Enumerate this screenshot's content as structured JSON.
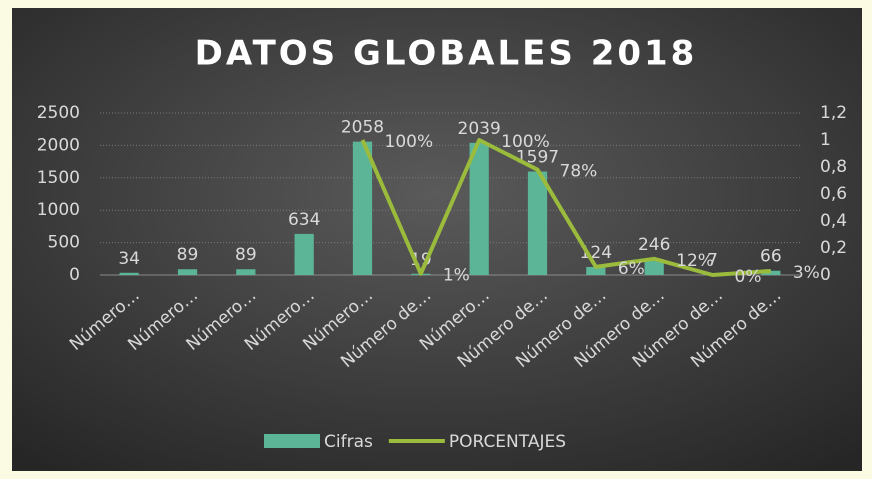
{
  "chart_data": {
    "type": "bar-line",
    "title": "DATOS GLOBALES 2018",
    "categories": [
      "Número…",
      "Número…",
      "Número…",
      "Número…",
      "Número…",
      "Número de…",
      "Número…",
      "Número de…",
      "Número de…",
      "Número de…",
      "Número de…",
      "Número de…"
    ],
    "series": [
      {
        "name": "Cifras",
        "type": "bar",
        "color": "#5cb596",
        "values": [
          34,
          89,
          89,
          634,
          2058,
          19,
          2039,
          1597,
          124,
          246,
          7,
          66
        ]
      },
      {
        "name": "PORCENTAJES",
        "type": "line",
        "axis": "y2",
        "color": "#9bbb3c",
        "values": [
          null,
          null,
          null,
          null,
          1,
          0.01,
          1,
          0.78,
          0.06,
          0.12,
          0,
          0.03
        ],
        "value_labels": [
          null,
          null,
          null,
          null,
          "100%",
          "1%",
          "100%",
          "78%",
          "6%",
          "12%",
          "0%",
          "3%"
        ]
      }
    ],
    "ylim": [
      0,
      2500
    ],
    "yticks": [
      0,
      500,
      1000,
      1500,
      2000,
      2500
    ],
    "y2lim": [
      0,
      1.2
    ],
    "y2ticks": [
      0,
      {
        "value": 0.2,
        "label": "0,2"
      },
      {
        "value": 0.4,
        "label": "0,4"
      },
      {
        "value": 0.6,
        "label": "0,6"
      },
      {
        "value": 0.8,
        "label": "0,8"
      },
      1,
      {
        "value": 1.2,
        "label": "1,2"
      }
    ],
    "grid": true,
    "legend": "bottom"
  }
}
